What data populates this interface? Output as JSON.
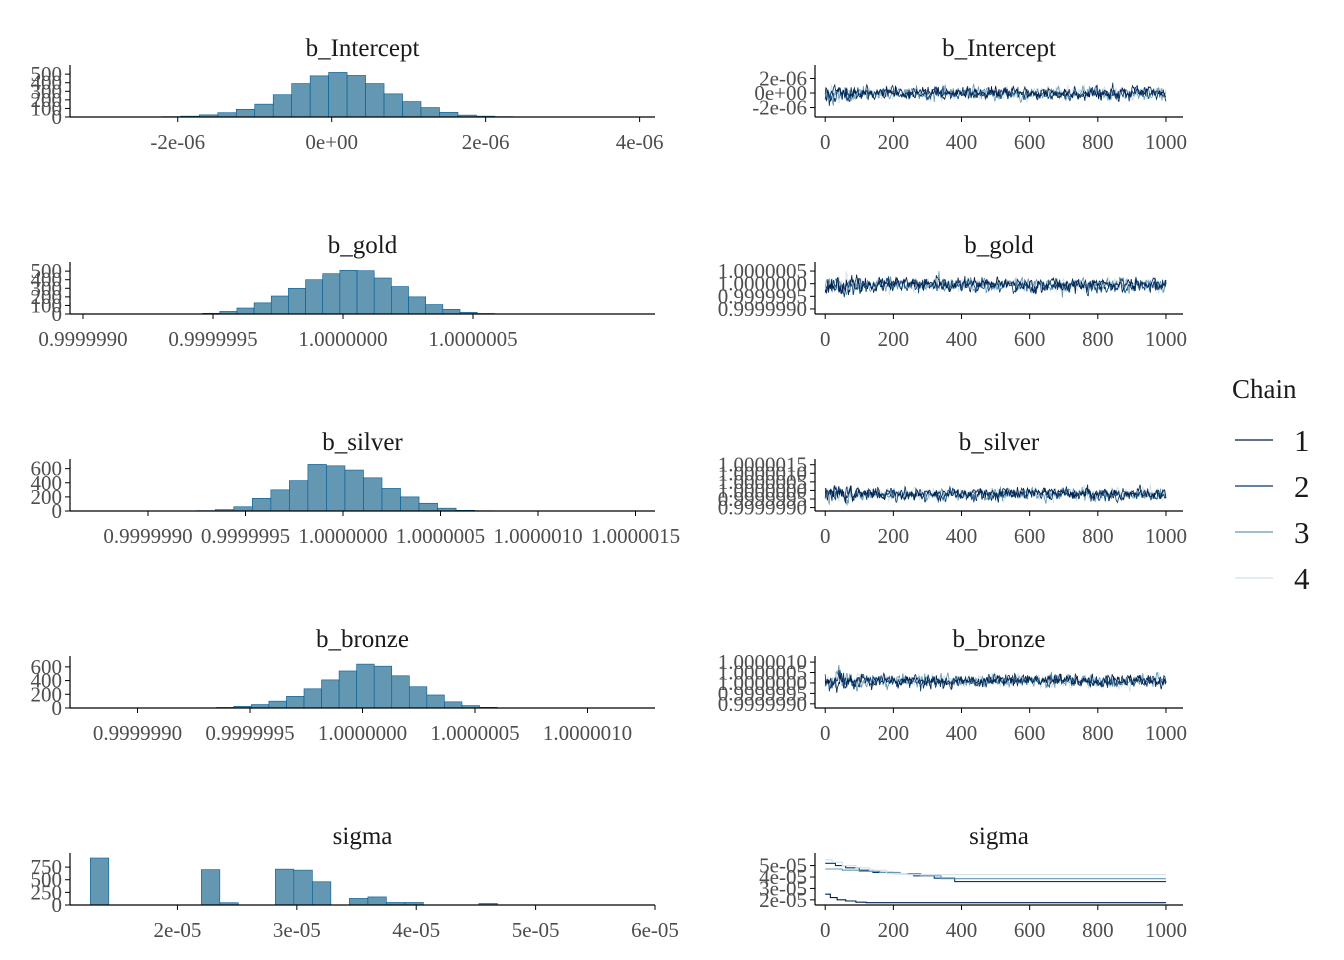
{
  "colors": {
    "hist_fill": "#6497b1",
    "hist_stroke": "#005b96",
    "axis": "#000000",
    "chains": [
      "#011f4b",
      "#03396c",
      "#6497b1",
      "#d1e1ec"
    ]
  },
  "legend": {
    "title": "Chain",
    "items": [
      {
        "label": "1",
        "color": "#011f4b"
      },
      {
        "label": "2",
        "color": "#03396c"
      },
      {
        "label": "3",
        "color": "#6497b1"
      },
      {
        "label": "4",
        "color": "#d1e1ec"
      }
    ]
  },
  "chart_data": [
    {
      "type": "bar",
      "title": "b_Intercept",
      "x_range": [
        -3.4e-06,
        4.2e-06
      ],
      "y_range": [
        0,
        560
      ],
      "x_ticks": [
        {
          "v": -2e-06,
          "label": "-2e-06"
        },
        {
          "v": 0,
          "label": "0e+00"
        },
        {
          "v": 2e-06,
          "label": "2e-06"
        },
        {
          "v": 4e-06,
          "label": "4e-06"
        }
      ],
      "y_ticks": [
        {
          "v": 0,
          "label": "0"
        },
        {
          "v": 100,
          "label": "100"
        },
        {
          "v": 200,
          "label": "200"
        },
        {
          "v": 300,
          "label": "300"
        },
        {
          "v": 400,
          "label": "400"
        },
        {
          "v": 500,
          "label": "500"
        }
      ],
      "bin_start": -2.2e-06,
      "bin_width": 2.4e-07,
      "counts": [
        4,
        10,
        25,
        50,
        90,
        150,
        260,
        390,
        480,
        520,
        485,
        390,
        270,
        180,
        110,
        55,
        22,
        10,
        4,
        1
      ]
    },
    {
      "type": "bar",
      "title": "b_gold",
      "x_range": [
        0.99999895,
        1.0000012
      ],
      "y_range": [
        0,
        560
      ],
      "x_ticks": [
        {
          "v": 0.999999,
          "label": "0.9999990"
        },
        {
          "v": 0.9999995,
          "label": "0.9999995"
        },
        {
          "v": 1.0,
          "label": "1.0000000"
        },
        {
          "v": 1.0000005,
          "label": "1.0000005"
        }
      ],
      "y_ticks": [
        {
          "v": 0,
          "label": "0"
        },
        {
          "v": 100,
          "label": "100"
        },
        {
          "v": 200,
          "label": "200"
        },
        {
          "v": 300,
          "label": "300"
        },
        {
          "v": 400,
          "label": "400"
        },
        {
          "v": 500,
          "label": "500"
        }
      ],
      "bin_start": 0.99999946,
      "bin_width": 6.6e-08,
      "counts": [
        8,
        30,
        70,
        130,
        210,
        300,
        400,
        470,
        510,
        505,
        420,
        320,
        200,
        110,
        55,
        20,
        6
      ]
    },
    {
      "type": "bar",
      "title": "b_silver",
      "x_range": [
        0.9999986,
        1.0000016
      ],
      "y_range": [
        0,
        680
      ],
      "x_ticks": [
        {
          "v": 0.999999,
          "label": "0.9999990"
        },
        {
          "v": 0.9999995,
          "label": "0.9999995"
        },
        {
          "v": 1.0,
          "label": "1.0000000"
        },
        {
          "v": 1.0000005,
          "label": "1.0000005"
        },
        {
          "v": 1.000001,
          "label": "1.0000010"
        },
        {
          "v": 1.0000015,
          "label": "1.0000015"
        }
      ],
      "y_ticks": [
        {
          "v": 0,
          "label": "0"
        },
        {
          "v": 200,
          "label": "200"
        },
        {
          "v": 400,
          "label": "400"
        },
        {
          "v": 600,
          "label": "600"
        }
      ],
      "bin_start": 0.99999925,
      "bin_width": 9.5e-08,
      "counts": [
        5,
        20,
        60,
        180,
        300,
        430,
        660,
        640,
        580,
        470,
        320,
        200,
        110,
        40,
        10,
        4
      ]
    },
    {
      "type": "bar",
      "title": "b_bronze",
      "x_range": [
        0.9999987,
        1.0000013
      ],
      "y_range": [
        0,
        700
      ],
      "x_ticks": [
        {
          "v": 0.999999,
          "label": "0.9999990"
        },
        {
          "v": 0.9999995,
          "label": "0.9999995"
        },
        {
          "v": 1.0,
          "label": "1.0000000"
        },
        {
          "v": 1.0000005,
          "label": "1.0000005"
        },
        {
          "v": 1.000001,
          "label": "1.0000010"
        }
      ],
      "y_ticks": [
        {
          "v": 0,
          "label": "0"
        },
        {
          "v": 200,
          "label": "200"
        },
        {
          "v": 400,
          "label": "400"
        },
        {
          "v": 600,
          "label": "600"
        }
      ],
      "bin_start": 0.99999935,
      "bin_width": 7.8e-08,
      "counts": [
        8,
        25,
        50,
        100,
        170,
        280,
        410,
        540,
        640,
        610,
        470,
        310,
        190,
        90,
        35,
        10
      ]
    },
    {
      "type": "bar",
      "title": "sigma",
      "x_range": [
        1.1e-05,
        6e-05
      ],
      "y_range": [
        0,
        950
      ],
      "x_ticks": [
        {
          "v": 2e-05,
          "label": "2e-05"
        },
        {
          "v": 3e-05,
          "label": "3e-05"
        },
        {
          "v": 4e-05,
          "label": "4e-05"
        },
        {
          "v": 5e-05,
          "label": "5e-05"
        },
        {
          "v": 6e-05,
          "label": "6e-05"
        }
      ],
      "y_ticks": [
        {
          "v": 0,
          "label": "0"
        },
        {
          "v": 250,
          "label": "250"
        },
        {
          "v": 500,
          "label": "500"
        },
        {
          "v": 750,
          "label": "750"
        }
      ],
      "bin_start": 1.27e-05,
      "bin_width": 1.55e-06,
      "counts": [
        930,
        0,
        0,
        0,
        0,
        0,
        700,
        45,
        0,
        0,
        710,
        690,
        460,
        0,
        130,
        160,
        50,
        50,
        0,
        0,
        0,
        30,
        0,
        0,
        0
      ]
    },
    {
      "type": "line",
      "title": "b_Intercept",
      "x_range": [
        -30,
        1050
      ],
      "y_range": [
        -3.3e-06,
        3.3e-06
      ],
      "x_ticks": [
        {
          "v": 0,
          "label": "0"
        },
        {
          "v": 200,
          "label": "200"
        },
        {
          "v": 400,
          "label": "400"
        },
        {
          "v": 600,
          "label": "600"
        },
        {
          "v": 800,
          "label": "800"
        },
        {
          "v": 1000,
          "label": "1000"
        }
      ],
      "y_ticks": [
        {
          "v": -2e-06,
          "label": "-2e-06"
        },
        {
          "v": 0,
          "label": "0e+00"
        },
        {
          "v": 2e-06,
          "label": "2e-06"
        }
      ],
      "center": 0,
      "sd": 7e-07,
      "seed": 11
    },
    {
      "type": "line",
      "title": "b_gold",
      "x_range": [
        -30,
        1050
      ],
      "y_range": [
        0.9999988,
        1.0000007
      ],
      "x_ticks": [
        {
          "v": 0,
          "label": "0"
        },
        {
          "v": 200,
          "label": "200"
        },
        {
          "v": 400,
          "label": "400"
        },
        {
          "v": 600,
          "label": "600"
        },
        {
          "v": 800,
          "label": "800"
        },
        {
          "v": 1000,
          "label": "1000"
        }
      ],
      "y_ticks": [
        {
          "v": 0.999999,
          "label": "0.9999990"
        },
        {
          "v": 0.9999995,
          "label": "0.9999995"
        },
        {
          "v": 1.0,
          "label": "1.0000000"
        },
        {
          "v": 1.0000005,
          "label": "1.0000005"
        }
      ],
      "center": 0.99999995,
      "sd": 2.2e-07,
      "seed": 23
    },
    {
      "type": "line",
      "title": "b_silver",
      "x_range": [
        -30,
        1050
      ],
      "y_range": [
        0.9999988,
        1.0000016
      ],
      "x_ticks": [
        {
          "v": 0,
          "label": "0"
        },
        {
          "v": 200,
          "label": "200"
        },
        {
          "v": 400,
          "label": "400"
        },
        {
          "v": 600,
          "label": "600"
        },
        {
          "v": 800,
          "label": "800"
        },
        {
          "v": 1000,
          "label": "1000"
        }
      ],
      "y_ticks": [
        {
          "v": 0.999999,
          "label": "0.9999990"
        },
        {
          "v": 0.9999995,
          "label": "0.9999995"
        },
        {
          "v": 1.0,
          "label": "1.0000000"
        },
        {
          "v": 1.0000005,
          "label": "1.0000005"
        },
        {
          "v": 1.000001,
          "label": "1.0000010"
        },
        {
          "v": 1.0000015,
          "label": "1.0000015"
        }
      ],
      "center": 0.9999998,
      "sd": 2.8e-07,
      "seed": 37
    },
    {
      "type": "line",
      "title": "b_bronze",
      "x_range": [
        -30,
        1050
      ],
      "y_range": [
        0.9999988,
        1.0000011
      ],
      "x_ticks": [
        {
          "v": 0,
          "label": "0"
        },
        {
          "v": 200,
          "label": "200"
        },
        {
          "v": 400,
          "label": "400"
        },
        {
          "v": 600,
          "label": "600"
        },
        {
          "v": 800,
          "label": "800"
        },
        {
          "v": 1000,
          "label": "1000"
        }
      ],
      "y_ticks": [
        {
          "v": 0.999999,
          "label": "0.9999990"
        },
        {
          "v": 0.9999995,
          "label": "0.9999995"
        },
        {
          "v": 1.0,
          "label": "1.0000000"
        },
        {
          "v": 1.0000005,
          "label": "1.0000005"
        },
        {
          "v": 1.000001,
          "label": "1.0000010"
        }
      ],
      "center": 1.0000001,
      "sd": 2.5e-07,
      "seed": 53
    },
    {
      "type": "line",
      "title": "sigma",
      "x_range": [
        -30,
        1050
      ],
      "y_range": [
        1.55e-05,
        5.75e-05
      ],
      "x_ticks": [
        {
          "v": 0,
          "label": "0"
        },
        {
          "v": 200,
          "label": "200"
        },
        {
          "v": 400,
          "label": "400"
        },
        {
          "v": 600,
          "label": "600"
        },
        {
          "v": 800,
          "label": "800"
        },
        {
          "v": 1000,
          "label": "1000"
        }
      ],
      "y_ticks": [
        {
          "v": 2e-05,
          "label": "2e-05"
        },
        {
          "v": 3e-05,
          "label": "3e-05"
        },
        {
          "v": 4e-05,
          "label": "4e-05"
        },
        {
          "v": 5e-05,
          "label": "5e-05"
        }
      ],
      "chains": [
        {
          "x": [
            0,
            15,
            35,
            60,
            90,
            120,
            1000
          ],
          "y": [
            2.5e-05,
            2.2e-05,
            2e-05,
            1.9e-05,
            1.8e-05,
            1.75e-05,
            1.75e-05
          ]
        },
        {
          "x": [
            0,
            30,
            60,
            100,
            140,
            200,
            260,
            320,
            380,
            1000
          ],
          "y": [
            5.2e-05,
            5e-05,
            4.8e-05,
            4.6e-05,
            4.4e-05,
            4.3e-05,
            4.1e-05,
            3.9e-05,
            3.6e-05,
            3.6e-05
          ]
        },
        {
          "x": [
            0,
            50,
            100,
            160,
            220,
            280,
            340,
            1000
          ],
          "y": [
            4.7e-05,
            4.6e-05,
            4.5e-05,
            4.4e-05,
            4.3e-05,
            4.1e-05,
            3.85e-05,
            3.85e-05
          ]
        },
        {
          "x": [
            0,
            20,
            50,
            90,
            130,
            180,
            240,
            1000
          ],
          "y": [
            5.5e-05,
            5.3e-05,
            5e-05,
            4.8e-05,
            4.6e-05,
            4.3e-05,
            4.2e-05,
            4.2e-05
          ]
        }
      ]
    }
  ]
}
